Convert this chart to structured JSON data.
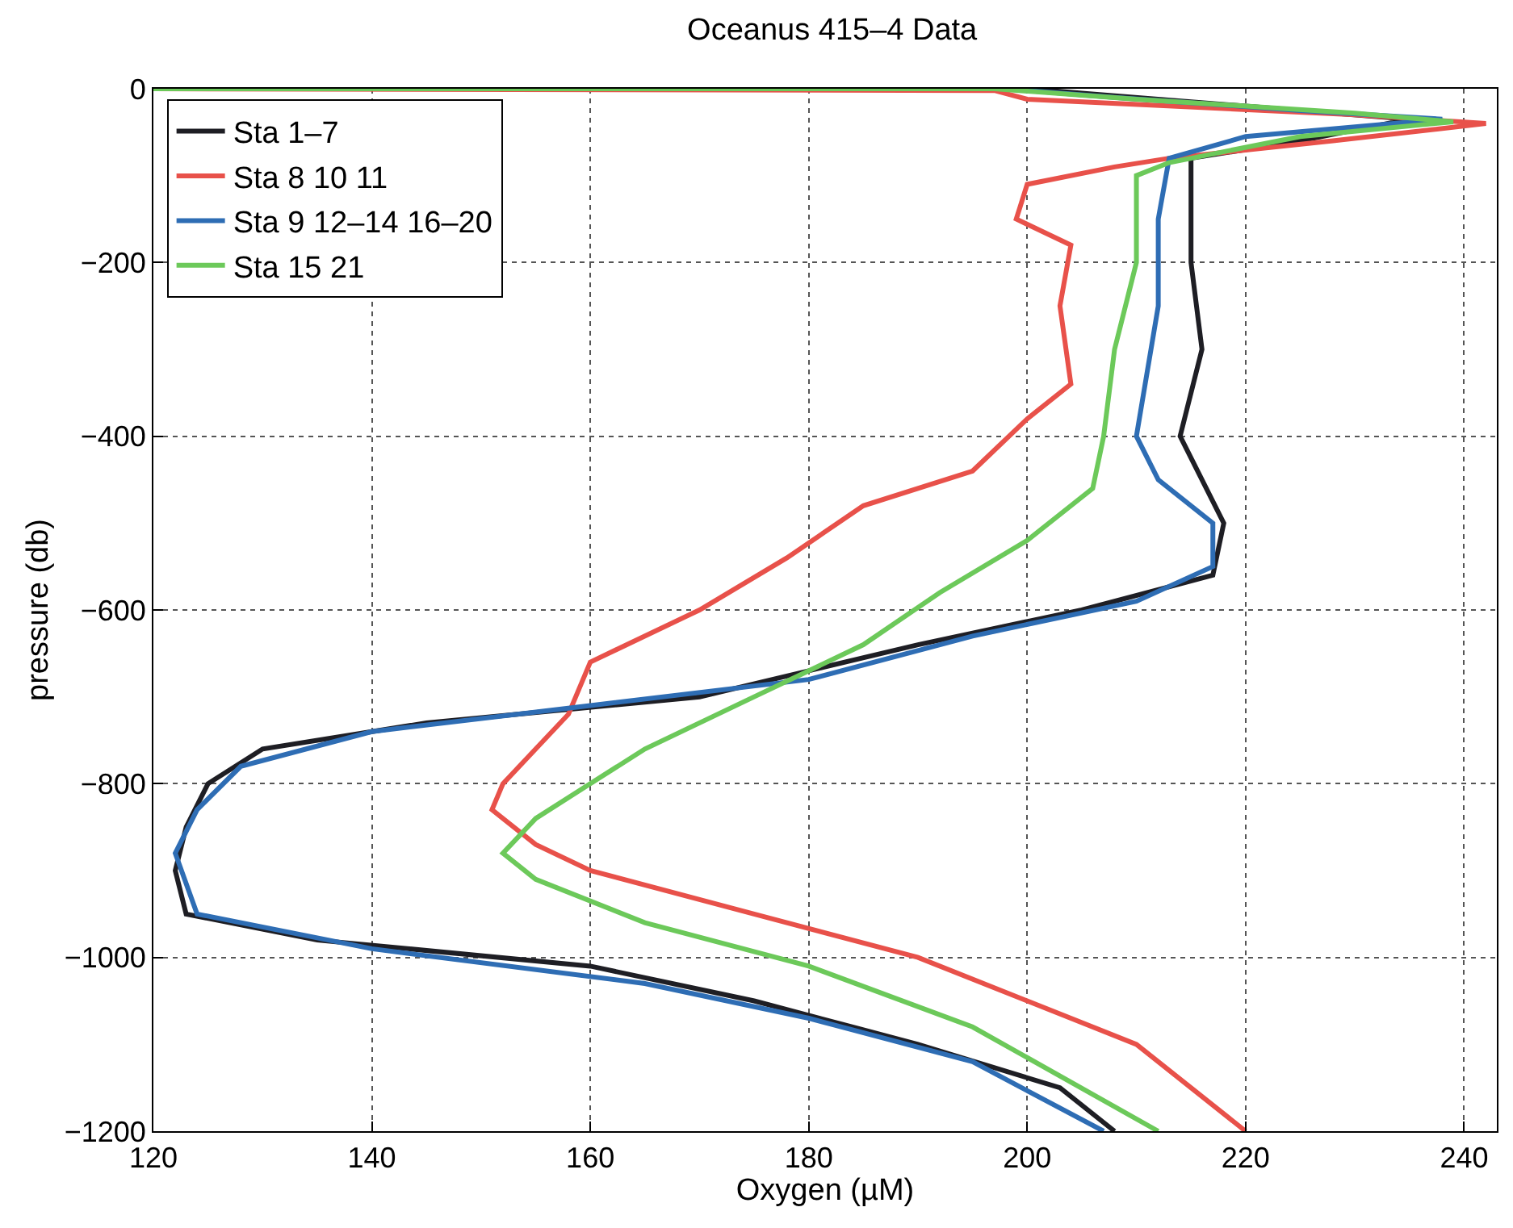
{
  "chart_data": {
    "type": "line",
    "title": "Oceanus 415–4 Data",
    "xlabel": "Oxygen (µM)",
    "ylabel": "pressure (db)",
    "xlim": [
      120,
      243
    ],
    "xticks": [
      120,
      140,
      160,
      180,
      200,
      220,
      240
    ],
    "ylim": [
      -1200,
      0
    ],
    "yticks": [
      -1200,
      -1000,
      -800,
      -600,
      -400,
      -200,
      0
    ],
    "grid": true,
    "legend": "top left",
    "marker": "none",
    "line_style": "solid",
    "series": [
      {
        "name": "Sta 1–7",
        "color": "#1e1e24",
        "x": [
          120,
          200,
          205,
          215,
          235,
          225,
          215,
          215,
          216,
          214,
          218,
          217,
          205,
          190,
          170,
          145,
          130,
          125,
          123,
          122,
          123,
          135,
          160,
          175,
          190,
          203,
          208
        ],
        "values": [
          0,
          0,
          -5,
          -15,
          -35,
          -60,
          -80,
          -200,
          -300,
          -400,
          -500,
          -560,
          -600,
          -640,
          -700,
          -730,
          -760,
          -800,
          -850,
          -900,
          -950,
          -980,
          -1010,
          -1050,
          -1100,
          -1150,
          -1200
        ]
      },
      {
        "name": "Sta 8 10 11",
        "color": "#e8514a",
        "x": [
          120,
          197,
          200,
          230,
          242,
          228,
          213,
          208,
          200,
          199,
          204,
          203,
          204,
          200,
          195,
          185,
          178,
          170,
          160,
          158,
          155,
          152,
          151,
          155,
          160,
          175,
          190,
          200,
          210,
          220
        ],
        "values": [
          0,
          -2,
          -12,
          -30,
          -40,
          -60,
          -80,
          -90,
          -110,
          -150,
          -180,
          -250,
          -340,
          -380,
          -440,
          -480,
          -540,
          -600,
          -660,
          -720,
          -760,
          -800,
          -830,
          -870,
          -900,
          -950,
          -1000,
          -1050,
          -1100,
          -1200
        ]
      },
      {
        "name": "Sta 9 12–14 16–20",
        "color": "#2e6db4",
        "x": [
          120,
          198,
          208,
          225,
          238,
          220,
          213,
          212,
          212,
          210,
          212,
          217,
          217,
          210,
          195,
          180,
          160,
          140,
          128,
          124,
          122,
          124,
          140,
          165,
          180,
          195,
          207
        ],
        "values": [
          0,
          0,
          -10,
          -25,
          -35,
          -55,
          -80,
          -150,
          -250,
          -400,
          -450,
          -500,
          -550,
          -590,
          -630,
          -680,
          -710,
          -740,
          -780,
          -830,
          -880,
          -950,
          -990,
          -1030,
          -1070,
          -1120,
          -1200
        ]
      },
      {
        "name": "Sta 15 21",
        "color": "#6cc95a",
        "x": [
          120,
          197,
          210,
          230,
          239,
          225,
          213,
          210,
          210,
          208,
          207,
          206,
          200,
          192,
          185,
          175,
          165,
          160,
          155,
          152,
          155,
          165,
          180,
          195,
          212
        ],
        "values": [
          0,
          0,
          -12,
          -28,
          -38,
          -55,
          -85,
          -100,
          -200,
          -300,
          -400,
          -460,
          -520,
          -580,
          -640,
          -700,
          -760,
          -800,
          -840,
          -880,
          -910,
          -960,
          -1010,
          -1080,
          -1200
        ]
      }
    ]
  }
}
